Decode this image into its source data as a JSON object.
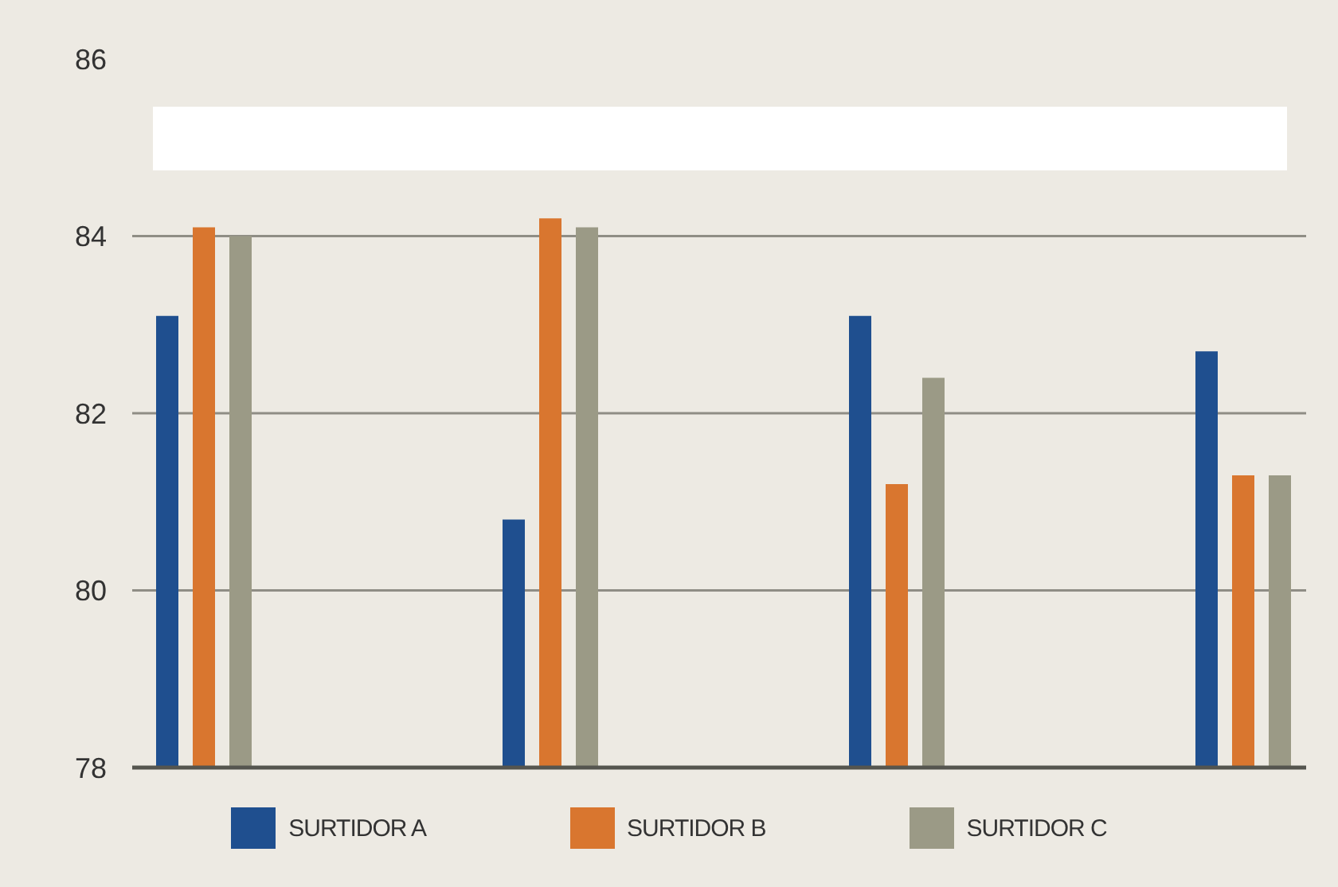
{
  "chart_data": {
    "type": "bar",
    "categories": [
      null,
      null,
      null,
      null
    ],
    "series": [
      {
        "name": "SURTIDOR A",
        "color": "#1f4f8f",
        "values": [
          83.1,
          80.8,
          83.1,
          82.7
        ]
      },
      {
        "name": "SURTIDOR B",
        "color": "#d9762f",
        "values": [
          84.1,
          84.2,
          81.2,
          81.3
        ]
      },
      {
        "name": "SURTIDOR C",
        "color": "#9b9a86",
        "values": [
          84.0,
          84.1,
          82.4,
          81.3
        ]
      }
    ],
    "ylim": [
      78,
      86
    ],
    "yticks": [
      78,
      80,
      82,
      84,
      86
    ],
    "grid": "y",
    "legend": "bottom",
    "tick_labels": "y"
  }
}
